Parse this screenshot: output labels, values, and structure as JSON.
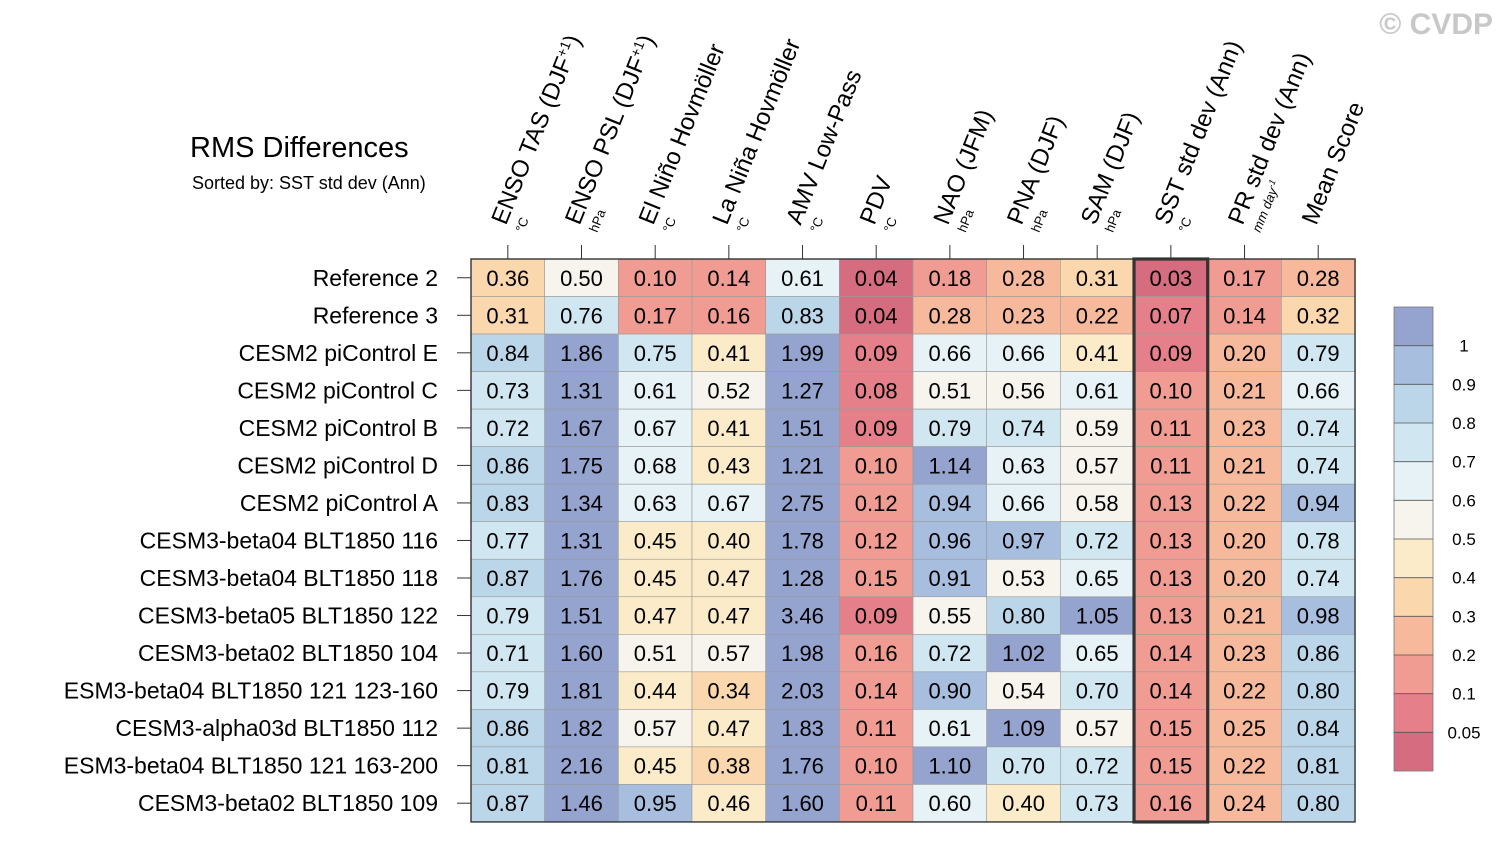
{
  "watermark": "© CVDP",
  "chart_data": {
    "type": "heatmap",
    "title": "RMS Differences",
    "subtitle": "Sorted by: SST std dev (Ann)",
    "columns": [
      {
        "name": "ENSO TAS (DJF",
        "sup": "+1",
        "close": ")",
        "unit": "°C"
      },
      {
        "name": "ENSO PSL (DJF",
        "sup": "+1",
        "close": ")",
        "unit": "hPa"
      },
      {
        "name": "El Niño Hovmöller",
        "sup": "",
        "close": "",
        "unit": "°C"
      },
      {
        "name": "La Niña Hovmöller",
        "sup": "",
        "close": "",
        "unit": "°C"
      },
      {
        "name": "AMV Low-Pass",
        "sup": "",
        "close": "",
        "unit": "°C"
      },
      {
        "name": "PDV",
        "sup": "",
        "close": "",
        "unit": "°C"
      },
      {
        "name": "NAO (JFM)",
        "sup": "",
        "close": "",
        "unit": "hPa"
      },
      {
        "name": "PNA (DJF)",
        "sup": "",
        "close": "",
        "unit": "hPa"
      },
      {
        "name": "SAM (DJF)",
        "sup": "",
        "close": "",
        "unit": "hPa"
      },
      {
        "name": "SST std dev (Ann)",
        "sup": "",
        "close": "",
        "unit": "°C"
      },
      {
        "name": "PR std dev (Ann)",
        "sup": "",
        "close": "",
        "unit": "mm day",
        "unit_sup": "-1"
      },
      {
        "name": "Mean Score",
        "sup": "",
        "close": "",
        "unit": ""
      }
    ],
    "rows": [
      "Reference 2",
      "Reference 3",
      "CESM2 piControl E",
      "CESM2 piControl C",
      "CESM2 piControl B",
      "CESM2 piControl D",
      "CESM2 piControl A",
      "CESM3-beta04 BLT1850 116",
      "CESM3-beta04 BLT1850 118",
      "CESM3-beta05 BLT1850 122",
      "CESM3-beta02 BLT1850 104",
      "ESM3-beta04 BLT1850 121 123-160",
      "CESM3-alpha03d BLT1850 112",
      "ESM3-beta04 BLT1850 121 163-200",
      "CESM3-beta02 BLT1850 109"
    ],
    "values": [
      [
        "0.36",
        "0.50",
        "0.10",
        "0.14",
        "0.61",
        "0.04",
        "0.18",
        "0.28",
        "0.31",
        "0.03",
        "0.17",
        "0.28"
      ],
      [
        "0.31",
        "0.76",
        "0.17",
        "0.16",
        "0.83",
        "0.04",
        "0.28",
        "0.23",
        "0.22",
        "0.07",
        "0.14",
        "0.32"
      ],
      [
        "0.84",
        "1.86",
        "0.75",
        "0.41",
        "1.99",
        "0.09",
        "0.66",
        "0.66",
        "0.41",
        "0.09",
        "0.20",
        "0.79"
      ],
      [
        "0.73",
        "1.31",
        "0.61",
        "0.52",
        "1.27",
        "0.08",
        "0.51",
        "0.56",
        "0.61",
        "0.10",
        "0.21",
        "0.66"
      ],
      [
        "0.72",
        "1.67",
        "0.67",
        "0.41",
        "1.51",
        "0.09",
        "0.79",
        "0.74",
        "0.59",
        "0.11",
        "0.23",
        "0.74"
      ],
      [
        "0.86",
        "1.75",
        "0.68",
        "0.43",
        "1.21",
        "0.10",
        "1.14",
        "0.63",
        "0.57",
        "0.11",
        "0.21",
        "0.74"
      ],
      [
        "0.83",
        "1.34",
        "0.63",
        "0.67",
        "2.75",
        "0.12",
        "0.94",
        "0.66",
        "0.58",
        "0.13",
        "0.22",
        "0.94"
      ],
      [
        "0.77",
        "1.31",
        "0.45",
        "0.40",
        "1.78",
        "0.12",
        "0.96",
        "0.97",
        "0.72",
        "0.13",
        "0.20",
        "0.78"
      ],
      [
        "0.87",
        "1.76",
        "0.45",
        "0.47",
        "1.28",
        "0.15",
        "0.91",
        "0.53",
        "0.65",
        "0.13",
        "0.20",
        "0.74"
      ],
      [
        "0.79",
        "1.51",
        "0.47",
        "0.47",
        "3.46",
        "0.09",
        "0.55",
        "0.80",
        "1.05",
        "0.13",
        "0.21",
        "0.98"
      ],
      [
        "0.71",
        "1.60",
        "0.51",
        "0.57",
        "1.98",
        "0.16",
        "0.72",
        "1.02",
        "0.65",
        "0.14",
        "0.23",
        "0.86"
      ],
      [
        "0.79",
        "1.81",
        "0.44",
        "0.34",
        "2.03",
        "0.14",
        "0.90",
        "0.54",
        "0.70",
        "0.14",
        "0.22",
        "0.80"
      ],
      [
        "0.86",
        "1.82",
        "0.57",
        "0.47",
        "1.83",
        "0.11",
        "0.61",
        "1.09",
        "0.57",
        "0.15",
        "0.25",
        "0.84"
      ],
      [
        "0.81",
        "2.16",
        "0.45",
        "0.38",
        "1.76",
        "0.10",
        "1.10",
        "0.70",
        "0.72",
        "0.15",
        "0.22",
        "0.81"
      ],
      [
        "0.87",
        "1.46",
        "0.95",
        "0.46",
        "1.60",
        "0.11",
        "0.60",
        "0.40",
        "0.73",
        "0.16",
        "0.24",
        "0.80"
      ]
    ],
    "highlighted_column": "SST std dev (Ann)",
    "colorbar": {
      "labels": [
        "1",
        "0.9",
        "0.8",
        "0.7",
        "0.6",
        "0.5",
        "0.4",
        "0.3",
        "0.2",
        "0.1",
        "0.05"
      ],
      "colors": [
        "#95a3cf",
        "#a7bedf",
        "#bcd6e9",
        "#d0e7f1",
        "#e6f2f6",
        "#f6f4ec",
        "#fcebc8",
        "#fad7ad",
        "#f6b99b",
        "#f09c93",
        "#e5808b",
        "#d56c7f"
      ]
    }
  }
}
